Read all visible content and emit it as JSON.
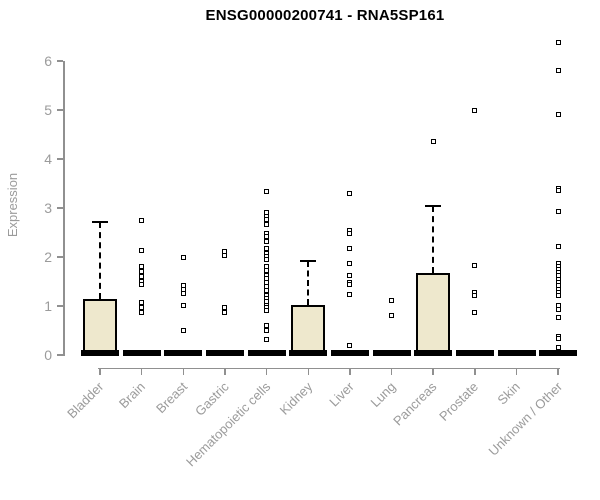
{
  "chart_data": {
    "type": "boxplot",
    "title": "ENSG00000200741 - RNA5SP161",
    "ylabel": "Expression",
    "xlabel": "",
    "ylim": [
      0,
      6.5
    ],
    "yticks": [
      0,
      1,
      2,
      3,
      4,
      5,
      6
    ],
    "grid": false,
    "legend": "none",
    "categories": [
      "Bladder",
      "Brain",
      "Breast",
      "Gastric",
      "Hematopoietic cells",
      "Kidney",
      "Liver",
      "Lung",
      "Pancreas",
      "Prostate",
      "Skin",
      "Unknown / Other"
    ],
    "series": [
      {
        "name": "Bladder",
        "q1": 0,
        "median": 0,
        "q3": 1.14,
        "whisker_low": 0,
        "whisker_high": 2.72,
        "points": []
      },
      {
        "name": "Brain",
        "q1": 0,
        "median": 0,
        "q3": 0,
        "whisker_low": 0,
        "whisker_high": 0,
        "points": [
          2.74,
          2.13,
          1.8,
          1.7,
          1.6,
          1.5,
          1.43,
          1.08,
          0.97,
          0.86
        ]
      },
      {
        "name": "Breast",
        "q1": 0,
        "median": 0,
        "q3": 0,
        "whisker_low": 0,
        "whisker_high": 0,
        "points": [
          1.99,
          1.42,
          1.33,
          1.25,
          1.02,
          0.51
        ]
      },
      {
        "name": "Gastric",
        "q1": 0,
        "median": 0,
        "q3": 0,
        "whisker_low": 0,
        "whisker_high": 0,
        "points": [
          2.12,
          2.03,
          0.97,
          0.86
        ]
      },
      {
        "name": "Hematopoietic cells",
        "q1": 0,
        "median": 0,
        "q3": 0,
        "whisker_low": 0,
        "whisker_high": 0,
        "points": [
          3.33,
          2.91,
          2.83,
          2.76,
          2.67,
          2.48,
          2.41,
          2.31,
          2.18,
          2.07,
          2.01,
          1.94,
          1.81,
          1.73,
          1.63,
          1.57,
          1.47,
          1.39,
          1.31,
          1.22,
          1.16,
          1.1,
          1.02,
          0.97,
          0.9,
          0.61,
          0.51,
          0.31
        ]
      },
      {
        "name": "Kidney",
        "q1": 0,
        "median": 0,
        "q3": 1.02,
        "whisker_low": 0,
        "whisker_high": 1.92,
        "points": []
      },
      {
        "name": "Liver",
        "q1": 0,
        "median": 0,
        "q3": 0,
        "whisker_low": 0,
        "whisker_high": 0,
        "points": [
          3.3,
          2.55,
          2.47,
          2.18,
          1.87,
          1.63,
          1.48,
          1.44,
          1.24,
          0.2
        ]
      },
      {
        "name": "Lung",
        "q1": 0,
        "median": 0,
        "q3": 0,
        "whisker_low": 0,
        "whisker_high": 0,
        "points": [
          1.11,
          0.8
        ]
      },
      {
        "name": "Pancreas",
        "q1": 0,
        "median": 0,
        "q3": 1.68,
        "whisker_low": 0,
        "whisker_high": 3.04,
        "points": [
          4.35
        ]
      },
      {
        "name": "Prostate",
        "q1": 0,
        "median": 0,
        "q3": 0,
        "whisker_low": 0,
        "whisker_high": 0,
        "points": [
          5.0,
          1.82,
          1.27,
          1.21,
          0.87
        ]
      },
      {
        "name": "Skin",
        "q1": 0,
        "median": 0,
        "q3": 0,
        "whisker_low": 0,
        "whisker_high": 0,
        "points": []
      },
      {
        "name": "Unknown / Other",
        "q1": 0,
        "median": 0,
        "q3": 0,
        "whisker_low": 0,
        "whisker_high": 0,
        "points": [
          6.37,
          5.8,
          4.9,
          3.4,
          3.35,
          2.92,
          2.21,
          1.87,
          1.8,
          1.74,
          1.68,
          1.62,
          1.55,
          1.48,
          1.41,
          1.34,
          1.27,
          1.22,
          1.02,
          0.93,
          0.76,
          0.37,
          0.33,
          0.15
        ]
      }
    ],
    "colors": {
      "box_fill": "#EEE8CD",
      "box_border": "#000000",
      "median": "#000000",
      "outlier": "#000000",
      "axis": "#909090",
      "axis_text": "#9B9B9B",
      "title": "#000000"
    }
  }
}
